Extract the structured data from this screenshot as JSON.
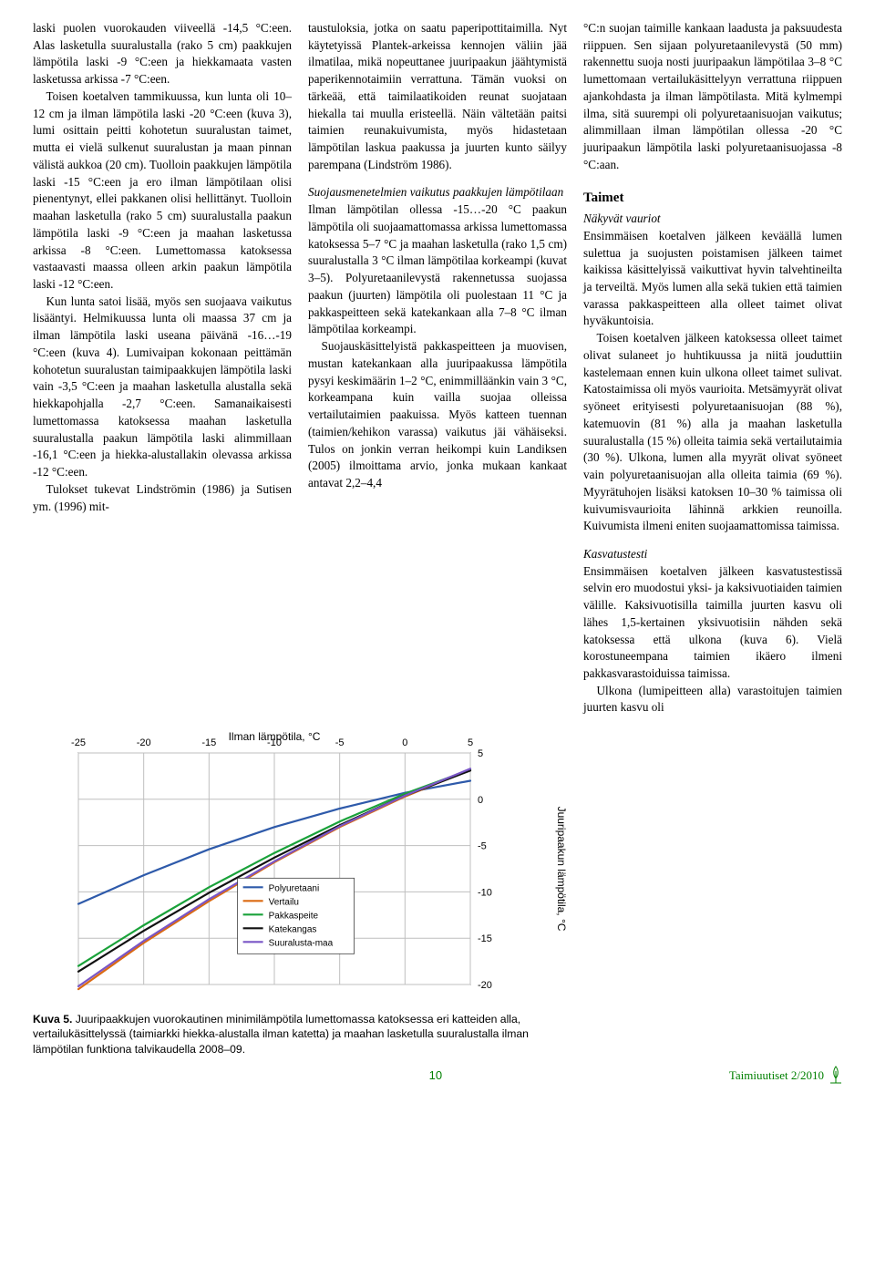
{
  "col1": {
    "p1": "laski puolen vuorokauden viiveellä -14,5 °C:een. Alas lasketulla suuralustalla (rako 5 cm) paakkujen lämpötila laski -9 °C:een ja hiekkamaata vasten lasketussa arkissa -7 °C:een.",
    "p2": "Toisen koetalven tammikuussa, kun lunta oli 10–12 cm ja ilman lämpötila laski -20 °C:een (kuva 3), lumi osittain peitti kohotetun suuralustan taimet, mutta ei vielä sulkenut suuralustan ja maan pinnan välistä aukkoa (20 cm). Tuolloin paakkujen lämpötila laski -15 °C:een ja ero ilman lämpötilaan olisi pienentynyt, ellei pakkanen olisi hellittänyt. Tuolloin maahan lasketulla (rako 5 cm) suuralustalla paakun lämpötila laski -9 °C:een ja maahan lasketussa arkissa -8 °C:een. Lumettomassa katoksessa vastaavasti maassa olleen arkin paakun lämpötila laski -12 °C:een.",
    "p3": "Kun lunta satoi lisää, myös sen suojaava vaikutus lisääntyi. Helmikuussa lunta oli maassa 37 cm ja ilman lämpötila laski useana päivänä -16…-19 °C:een (kuva 4). Lumivaipan kokonaan peittämän kohotetun suuralustan taimipaakkujen lämpötila laski vain -3,5 °C:een ja maahan lasketulla alustalla sekä hiekkapohjalla -2,7 °C:een. Samanaikaisesti lumettomassa katoksessa maahan lasketulla suuralustalla paakun lämpötila laski alimmillaan -16,1 °C:een ja hiekka-alustallakin olevassa arkissa -12 °C:een.",
    "p4": "Tulokset tukevat Lindströmin (1986) ja Sutisen ym. (1996) mit-"
  },
  "col2": {
    "p1": "taustuloksia, jotka on saatu paperipottitaimilla. Nyt käytetyissä Plantek-arkeissa kennojen väliin jää ilmatilaa, mikä nopeuttanee juuripaakun jäähtymistä paperikennotaimiin verrattuna. Tämän vuoksi on tärkeää, että taimilaatikoiden reunat suojataan hiekalla tai muulla eristeellä. Näin vältetään paitsi taimien reunakuivumista, myös hidastetaan lämpötilan laskua paakussa ja juurten kunto säilyy parempana (Lindström 1986).",
    "h_ital": "Suojausmenetelmien vaikutus paakkujen lämpötilaan",
    "p2": "Ilman lämpötilan ollessa -15…-20 °C paakun lämpötila oli suojaamattomassa arkissa lumettomassa katoksessa 5–7 °C ja maahan lasketulla (rako 1,5 cm) suuralustalla 3 °C ilman lämpötilaa korkeampi (kuvat 3–5). Polyuretaanilevystä rakennetussa suojassa paakun (juurten) lämpötila oli puolestaan 11 °C ja pakkaspeitteen sekä katekankaan alla 7–8 °C ilman lämpötilaa korkeampi.",
    "p3": "Suojauskäsittelyistä pakkaspeitteen ja muovisen, mustan katekankaan alla juuripaakussa lämpötila pysyi keskimäärin 1–2 °C, enimmilläänkin vain 3 °C, korkeampana kuin vailla suojaa olleissa vertailutaimien paakuissa. Myös katteen tuennan (taimien/kehikon varassa) vaikutus jäi vähäiseksi. Tulos on jonkin verran heikompi kuin Landiksen (2005) ilmoittama arvio, jonka mukaan kankaat antavat 2,2–4,4"
  },
  "col3": {
    "p1": "°C:n suojan taimille kankaan laadusta ja paksuudesta riippuen. Sen sijaan polyuretaanilevystä (50 mm) rakennettu suoja nosti juuripaakun lämpötilaa 3–8 °C lumettomaan vertailukäsittelyyn verrattuna riippuen ajankohdasta ja ilman lämpötilasta. Mitä kylmempi ilma, sitä suurempi oli polyuretaanisuojan vaikutus; alimmillaan ilman lämpötilan ollessa -20 °C juuripaakun lämpötila laski polyuretaanisuojassa -8 °C:aan.",
    "h_taimet": "Taimet",
    "h_nak": "Näkyvät vauriot",
    "p2": "Ensimmäisen koetalven jälkeen keväällä lumen sulettua ja suojusten poistamisen jälkeen taimet kaikissa käsittelyissä vaikuttivat hyvin talvehtineilta ja terveiltä. Myös lumen alla sekä tukien että taimien varassa pakkaspeitteen alla olleet taimet olivat hyväkuntoisia.",
    "p3": "Toisen koetalven jälkeen katoksessa olleet taimet olivat sulaneet jo huhtikuussa ja niitä jouduttiin kastelemaan ennen kuin ulkona olleet taimet sulivat. Katostaimissa oli myös vaurioita. Metsämyyrät olivat syöneet erityisesti polyuretaanisuojan (88 %), katemuovin (81 %) alla ja maahan lasketulla suuralustalla (15 %) olleita taimia sekä vertailutaimia (30 %). Ulkona, lumen alla myyrät olivat syöneet vain polyuretaanisuojan alla olleita taimia (69 %). Myyrätuhojen lisäksi katoksen 10–30 % taimissa oli kuivumisvaurioita lähinnä arkkien reunoilla. Kuivumista ilmeni eniten suojaamattomissa taimissa.",
    "h_kasv": "Kasvatustesti",
    "p4": "Ensimmäisen koetalven jälkeen kasvatustestissä selvin ero muodostui yksi- ja kaksivuotiaiden taimien välille. Kaksivuotisilla taimilla juurten kasvu oli lähes 1,5-kertainen yksivuotisiin nähden sekä katoksessa että ulkona (kuva 6). Vielä korostuneempana taimien ikäero ilmeni pakkasvarastoiduissa taimissa.",
    "p5": "Ulkona (lumipeitteen alla) varastoitujen taimien juurten kasvu oli"
  },
  "chart": {
    "x_label": "Ilman lämpötila, °C",
    "y_label": "Juuripaakun lämpötila, °C",
    "x_ticks": [
      -25,
      -20,
      -15,
      -10,
      -5,
      0,
      5
    ],
    "y_ticks": [
      5,
      0,
      -5,
      -10,
      -15,
      -20
    ],
    "xlim": [
      -25,
      5
    ],
    "ylim": [
      -20,
      5
    ],
    "grid_color": "#bfbfbf",
    "axis_color": "#404040",
    "background": "#ffffff",
    "axis_fontsize": 11,
    "label_fontsize": 12,
    "legend_fontsize": 10,
    "line_width": 2.2,
    "series": [
      {
        "name": "Polyuretaani",
        "color": "#2e5aaa",
        "points": [
          [
            -25,
            -11.3
          ],
          [
            -20,
            -8.2
          ],
          [
            -15,
            -5.4
          ],
          [
            -10,
            -3.0
          ],
          [
            -5,
            -1.0
          ],
          [
            0,
            0.7
          ],
          [
            5,
            2.0
          ]
        ]
      },
      {
        "name": "Vertailu",
        "color": "#db6a12",
        "points": [
          [
            -25,
            -20.5
          ],
          [
            -20,
            -15.5
          ],
          [
            -15,
            -11.0
          ],
          [
            -10,
            -6.8
          ],
          [
            -5,
            -3.0
          ],
          [
            0,
            0.3
          ],
          [
            5,
            3.2
          ]
        ]
      },
      {
        "name": "Pakkaspeite",
        "color": "#1aa23a",
        "points": [
          [
            -25,
            -18.0
          ],
          [
            -20,
            -13.6
          ],
          [
            -15,
            -9.5
          ],
          [
            -10,
            -5.8
          ],
          [
            -5,
            -2.4
          ],
          [
            0,
            0.6
          ],
          [
            5,
            3.2
          ]
        ]
      },
      {
        "name": "Katekangas",
        "color": "#111111",
        "points": [
          [
            -25,
            -18.6
          ],
          [
            -20,
            -14.2
          ],
          [
            -15,
            -10.1
          ],
          [
            -10,
            -6.3
          ],
          [
            -5,
            -2.8
          ],
          [
            0,
            0.4
          ],
          [
            5,
            3.1
          ]
        ]
      },
      {
        "name": "Suuralusta-maa",
        "color": "#7a56c6",
        "points": [
          [
            -25,
            -20.2
          ],
          [
            -20,
            -15.3
          ],
          [
            -15,
            -10.8
          ],
          [
            -10,
            -6.7
          ],
          [
            -5,
            -2.9
          ],
          [
            0,
            0.4
          ],
          [
            5,
            3.3
          ]
        ]
      }
    ]
  },
  "caption": {
    "lead": "Kuva 5.",
    "text": " Juuripaakkujen vuorokautinen minimilämpötila lumettomassa katoksessa eri katteiden alla, vertailukäsittelyssä (taimiarkki hiekka-alustalla ilman katetta) ja maahan lasketulla suuralustalla ilman lämpötilan funktiona talvikaudella 2008–09."
  },
  "footer": {
    "page": "10",
    "issue": "Taimiuutiset 2/2010"
  }
}
